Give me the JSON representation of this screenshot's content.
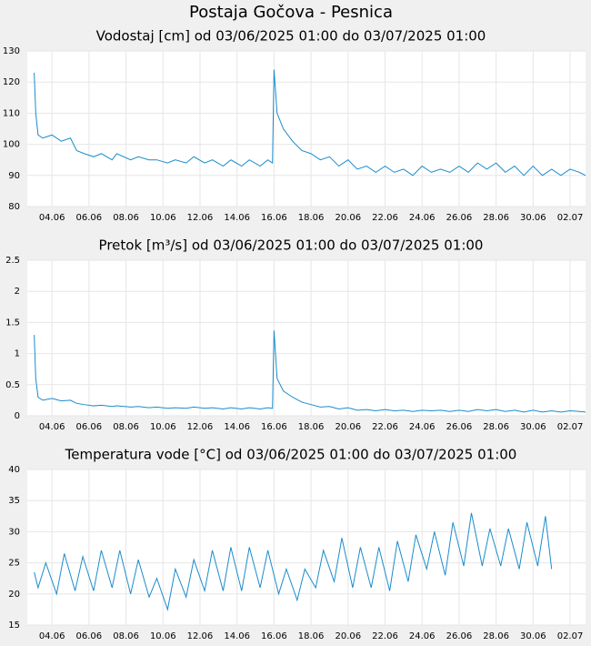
{
  "title": "Postaja Gočova - Pesnica",
  "chart_data": [
    {
      "type": "line",
      "title": "Vodostaj [cm] od 03/06/2025 01:00 do 03/07/2025 01:00",
      "x": [
        "2025-06-03T01:00",
        "2025-06-03T03:00",
        "2025-06-03T06:00",
        "2025-06-03T12:00",
        "2025-06-04T00:00",
        "2025-06-04T12:00",
        "2025-06-05T00:00",
        "2025-06-05T08:00",
        "2025-06-05T18:00",
        "2025-06-06T06:00",
        "2025-06-06T16:00",
        "2025-06-07T06:00",
        "2025-06-07T12:00",
        "2025-06-08T06:00",
        "2025-06-08T16:00",
        "2025-06-09T06:00",
        "2025-06-09T16:00",
        "2025-06-10T06:00",
        "2025-06-10T16:00",
        "2025-06-11T06:00",
        "2025-06-11T16:00",
        "2025-06-12T06:00",
        "2025-06-12T16:00",
        "2025-06-13T06:00",
        "2025-06-13T16:00",
        "2025-06-14T06:00",
        "2025-06-14T16:00",
        "2025-06-15T06:00",
        "2025-06-15T16:00",
        "2025-06-15T22:00",
        "2025-06-16T00:00",
        "2025-06-16T04:00",
        "2025-06-16T12:00",
        "2025-06-17T00:00",
        "2025-06-17T12:00",
        "2025-06-18T00:00",
        "2025-06-18T12:00",
        "2025-06-19T00:00",
        "2025-06-19T12:00",
        "2025-06-20T00:00",
        "2025-06-20T12:00",
        "2025-06-21T00:00",
        "2025-06-21T12:00",
        "2025-06-22T00:00",
        "2025-06-22T12:00",
        "2025-06-23T00:00",
        "2025-06-23T12:00",
        "2025-06-24T00:00",
        "2025-06-24T12:00",
        "2025-06-25T00:00",
        "2025-06-25T12:00",
        "2025-06-26T00:00",
        "2025-06-26T12:00",
        "2025-06-27T00:00",
        "2025-06-27T12:00",
        "2025-06-28T00:00",
        "2025-06-28T12:00",
        "2025-06-29T00:00",
        "2025-06-29T12:00",
        "2025-06-30T00:00",
        "2025-06-30T12:00",
        "2025-07-01T00:00",
        "2025-07-01T12:00",
        "2025-07-02T00:00",
        "2025-07-02T12:00",
        "2025-07-02T20:00"
      ],
      "values": [
        123,
        110,
        103,
        102,
        103,
        101,
        102,
        98,
        97,
        96,
        97,
        95,
        97,
        95,
        96,
        95,
        95,
        94,
        95,
        94,
        96,
        94,
        95,
        93,
        95,
        93,
        95,
        93,
        95,
        94,
        124,
        110,
        105,
        101,
        98,
        97,
        95,
        96,
        93,
        95,
        92,
        93,
        91,
        93,
        91,
        92,
        90,
        93,
        91,
        92,
        91,
        93,
        91,
        94,
        92,
        94,
        91,
        93,
        90,
        93,
        90,
        92,
        90,
        92,
        91,
        90
      ],
      "color": "#1a8ccc",
      "xlim": [
        "2025-06-02T16:00",
        "2025-07-02T20:00"
      ],
      "xticks": [
        {
          "value": "2025-06-04T00:00",
          "label": "04.06"
        },
        {
          "value": "2025-06-06T00:00",
          "label": "06.06"
        },
        {
          "value": "2025-06-08T00:00",
          "label": "08.06"
        },
        {
          "value": "2025-06-10T00:00",
          "label": "10.06"
        },
        {
          "value": "2025-06-12T00:00",
          "label": "12.06"
        },
        {
          "value": "2025-06-14T00:00",
          "label": "14.06"
        },
        {
          "value": "2025-06-16T00:00",
          "label": "16.06"
        },
        {
          "value": "2025-06-18T00:00",
          "label": "18.06"
        },
        {
          "value": "2025-06-20T00:00",
          "label": "20.06"
        },
        {
          "value": "2025-06-22T00:00",
          "label": "22.06"
        },
        {
          "value": "2025-06-24T00:00",
          "label": "24.06"
        },
        {
          "value": "2025-06-26T00:00",
          "label": "26.06"
        },
        {
          "value": "2025-06-28T00:00",
          "label": "28.06"
        },
        {
          "value": "2025-06-30T00:00",
          "label": "30.06"
        },
        {
          "value": "2025-07-02T00:00",
          "label": "02.07"
        }
      ],
      "ylim": [
        80,
        130
      ],
      "yticks": [
        80,
        90,
        100,
        110,
        120,
        130
      ],
      "grid": true
    },
    {
      "type": "line",
      "title": "Pretok [m³/s] od 03/06/2025 01:00 do 03/07/2025 01:00",
      "x": [
        "2025-06-03T01:00",
        "2025-06-03T03:00",
        "2025-06-03T06:00",
        "2025-06-03T12:00",
        "2025-06-04T00:00",
        "2025-06-04T12:00",
        "2025-06-05T00:00",
        "2025-06-05T08:00",
        "2025-06-05T18:00",
        "2025-06-06T06:00",
        "2025-06-06T16:00",
        "2025-06-07T06:00",
        "2025-06-07T12:00",
        "2025-06-08T06:00",
        "2025-06-08T16:00",
        "2025-06-09T06:00",
        "2025-06-09T16:00",
        "2025-06-10T06:00",
        "2025-06-10T16:00",
        "2025-06-11T06:00",
        "2025-06-11T16:00",
        "2025-06-12T06:00",
        "2025-06-12T16:00",
        "2025-06-13T06:00",
        "2025-06-13T16:00",
        "2025-06-14T06:00",
        "2025-06-14T16:00",
        "2025-06-15T06:00",
        "2025-06-15T16:00",
        "2025-06-15T22:00",
        "2025-06-16T00:00",
        "2025-06-16T04:00",
        "2025-06-16T12:00",
        "2025-06-17T00:00",
        "2025-06-17T12:00",
        "2025-06-18T00:00",
        "2025-06-18T12:00",
        "2025-06-19T00:00",
        "2025-06-19T12:00",
        "2025-06-20T00:00",
        "2025-06-20T12:00",
        "2025-06-21T00:00",
        "2025-06-21T12:00",
        "2025-06-22T00:00",
        "2025-06-22T12:00",
        "2025-06-23T00:00",
        "2025-06-23T12:00",
        "2025-06-24T00:00",
        "2025-06-24T12:00",
        "2025-06-25T00:00",
        "2025-06-25T12:00",
        "2025-06-26T00:00",
        "2025-06-26T12:00",
        "2025-06-27T00:00",
        "2025-06-27T12:00",
        "2025-06-28T00:00",
        "2025-06-28T12:00",
        "2025-06-29T00:00",
        "2025-06-29T12:00",
        "2025-06-30T00:00",
        "2025-06-30T12:00",
        "2025-07-01T00:00",
        "2025-07-01T12:00",
        "2025-07-02T00:00",
        "2025-07-02T12:00",
        "2025-07-02T20:00"
      ],
      "values": [
        1.3,
        0.6,
        0.3,
        0.25,
        0.28,
        0.24,
        0.25,
        0.2,
        0.18,
        0.16,
        0.17,
        0.15,
        0.16,
        0.14,
        0.15,
        0.13,
        0.14,
        0.12,
        0.13,
        0.12,
        0.14,
        0.12,
        0.13,
        0.11,
        0.13,
        0.11,
        0.13,
        0.11,
        0.13,
        0.12,
        1.37,
        0.6,
        0.4,
        0.3,
        0.22,
        0.18,
        0.14,
        0.15,
        0.11,
        0.13,
        0.09,
        0.1,
        0.08,
        0.1,
        0.08,
        0.09,
        0.07,
        0.09,
        0.08,
        0.09,
        0.07,
        0.09,
        0.07,
        0.1,
        0.08,
        0.1,
        0.07,
        0.09,
        0.06,
        0.09,
        0.06,
        0.08,
        0.06,
        0.08,
        0.07,
        0.06
      ],
      "color": "#1a8ccc",
      "xlim": [
        "2025-06-02T16:00",
        "2025-07-02T20:00"
      ],
      "xticks": [
        {
          "value": "2025-06-04T00:00",
          "label": "04.06"
        },
        {
          "value": "2025-06-06T00:00",
          "label": "06.06"
        },
        {
          "value": "2025-06-08T00:00",
          "label": "08.06"
        },
        {
          "value": "2025-06-10T00:00",
          "label": "10.06"
        },
        {
          "value": "2025-06-12T00:00",
          "label": "12.06"
        },
        {
          "value": "2025-06-14T00:00",
          "label": "14.06"
        },
        {
          "value": "2025-06-16T00:00",
          "label": "16.06"
        },
        {
          "value": "2025-06-18T00:00",
          "label": "18.06"
        },
        {
          "value": "2025-06-20T00:00",
          "label": "20.06"
        },
        {
          "value": "2025-06-22T00:00",
          "label": "22.06"
        },
        {
          "value": "2025-06-24T00:00",
          "label": "24.06"
        },
        {
          "value": "2025-06-26T00:00",
          "label": "26.06"
        },
        {
          "value": "2025-06-28T00:00",
          "label": "28.06"
        },
        {
          "value": "2025-06-30T00:00",
          "label": "30.06"
        },
        {
          "value": "2025-07-02T00:00",
          "label": "02.07"
        }
      ],
      "ylim": [
        0,
        2.5
      ],
      "yticks": [
        0,
        0.5,
        1,
        1.5,
        2,
        2.5
      ],
      "grid": true
    },
    {
      "type": "line",
      "title": "Temperatura vode [°C] od 03/06/2025 01:00 do 03/07/2025 01:00",
      "x": [
        "2025-06-03T01:00",
        "2025-06-03T06:00",
        "2025-06-03T16:00",
        "2025-06-04T06:00",
        "2025-06-04T16:00",
        "2025-06-05T06:00",
        "2025-06-05T16:00",
        "2025-06-06T06:00",
        "2025-06-06T16:00",
        "2025-06-07T06:00",
        "2025-06-07T16:00",
        "2025-06-08T06:00",
        "2025-06-08T16:00",
        "2025-06-09T06:00",
        "2025-06-09T16:00",
        "2025-06-10T06:00",
        "2025-06-10T16:00",
        "2025-06-11T06:00",
        "2025-06-11T16:00",
        "2025-06-12T06:00",
        "2025-06-12T16:00",
        "2025-06-13T06:00",
        "2025-06-13T16:00",
        "2025-06-14T06:00",
        "2025-06-14T16:00",
        "2025-06-15T06:00",
        "2025-06-15T16:00",
        "2025-06-16T06:00",
        "2025-06-16T16:00",
        "2025-06-17T06:00",
        "2025-06-17T16:00",
        "2025-06-18T06:00",
        "2025-06-18T16:00",
        "2025-06-19T06:00",
        "2025-06-19T16:00",
        "2025-06-20T06:00",
        "2025-06-20T16:00",
        "2025-06-21T06:00",
        "2025-06-21T16:00",
        "2025-06-22T06:00",
        "2025-06-22T16:00",
        "2025-06-23T06:00",
        "2025-06-23T16:00",
        "2025-06-24T06:00",
        "2025-06-24T16:00",
        "2025-06-25T06:00",
        "2025-06-25T16:00",
        "2025-06-26T06:00",
        "2025-06-26T16:00",
        "2025-06-27T06:00",
        "2025-06-27T16:00",
        "2025-06-28T06:00",
        "2025-06-28T16:00",
        "2025-06-29T06:00",
        "2025-06-29T16:00",
        "2025-06-30T06:00",
        "2025-06-30T16:00",
        "2025-07-01T00:00"
      ],
      "values": [
        23.5,
        21,
        25,
        20,
        26.5,
        20.5,
        26,
        20.5,
        27,
        21,
        27,
        20,
        25.5,
        19.5,
        22.5,
        17.5,
        24,
        19.5,
        25.5,
        20.5,
        27,
        20.5,
        27.5,
        20.5,
        27.5,
        21,
        27,
        20,
        24,
        19,
        24,
        21,
        27,
        22,
        29,
        21,
        27.5,
        21,
        27.5,
        20.5,
        28.5,
        22,
        29.5,
        24,
        30,
        23,
        31.5,
        24.5,
        33,
        24.5,
        30.5,
        24.5,
        30.5,
        24,
        31.5,
        24.5,
        32.5,
        24
      ],
      "color": "#1a8ccc",
      "xlim": [
        "2025-06-02T16:00",
        "2025-07-02T20:00"
      ],
      "xticks": [
        {
          "value": "2025-06-04T00:00",
          "label": "04.06"
        },
        {
          "value": "2025-06-06T00:00",
          "label": "06.06"
        },
        {
          "value": "2025-06-08T00:00",
          "label": "08.06"
        },
        {
          "value": "2025-06-10T00:00",
          "label": "10.06"
        },
        {
          "value": "2025-06-12T00:00",
          "label": "12.06"
        },
        {
          "value": "2025-06-14T00:00",
          "label": "14.06"
        },
        {
          "value": "2025-06-16T00:00",
          "label": "16.06"
        },
        {
          "value": "2025-06-18T00:00",
          "label": "18.06"
        },
        {
          "value": "2025-06-20T00:00",
          "label": "20.06"
        },
        {
          "value": "2025-06-22T00:00",
          "label": "22.06"
        },
        {
          "value": "2025-06-24T00:00",
          "label": "24.06"
        },
        {
          "value": "2025-06-26T00:00",
          "label": "26.06"
        },
        {
          "value": "2025-06-28T00:00",
          "label": "28.06"
        },
        {
          "value": "2025-06-30T00:00",
          "label": "30.06"
        },
        {
          "value": "2025-07-02T00:00",
          "label": "02.07"
        }
      ],
      "ylim": [
        15,
        40
      ],
      "yticks": [
        15,
        20,
        25,
        30,
        35,
        40
      ],
      "grid": true
    }
  ]
}
